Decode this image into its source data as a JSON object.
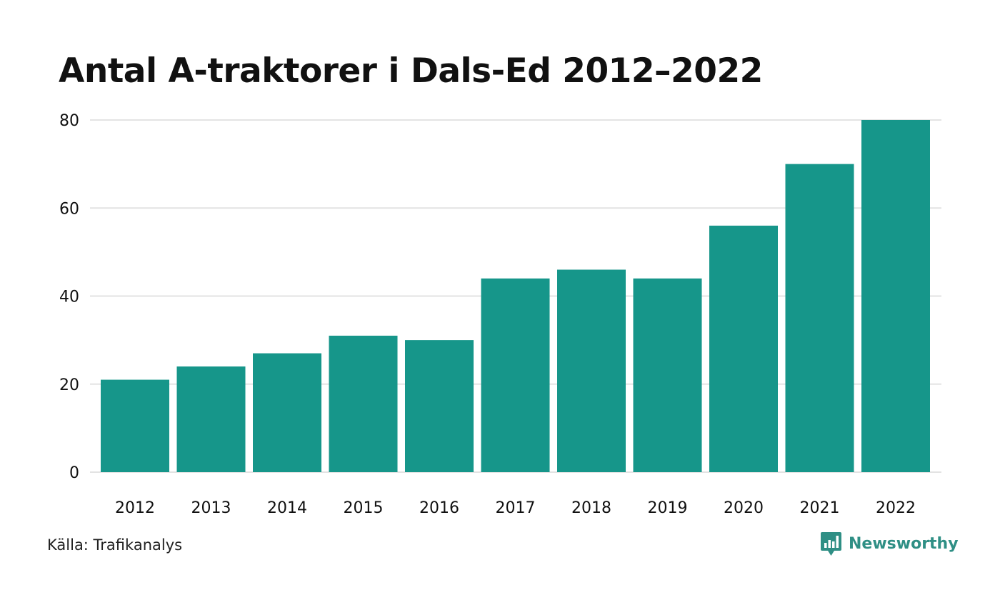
{
  "chart_data": {
    "type": "bar",
    "title": "Antal A-traktorer i Dals-Ed 2012–2022",
    "xlabel": "",
    "ylabel": "",
    "categories": [
      "2012",
      "2013",
      "2014",
      "2015",
      "2016",
      "2017",
      "2018",
      "2019",
      "2020",
      "2021",
      "2022"
    ],
    "values": [
      21,
      24,
      27,
      31,
      30,
      44,
      46,
      44,
      56,
      70,
      80
    ],
    "ylim": [
      0,
      80
    ],
    "yticks": [
      0,
      20,
      40,
      60,
      80
    ],
    "grid": true,
    "legend": "none",
    "bar_color": "#16968a",
    "grid_color": "#e3e3e3"
  },
  "source": "Källa: Trafikanalys",
  "brand": {
    "name": "Newsworthy",
    "icon": "newsworthy-logo-icon",
    "color": "#2f8f85"
  }
}
